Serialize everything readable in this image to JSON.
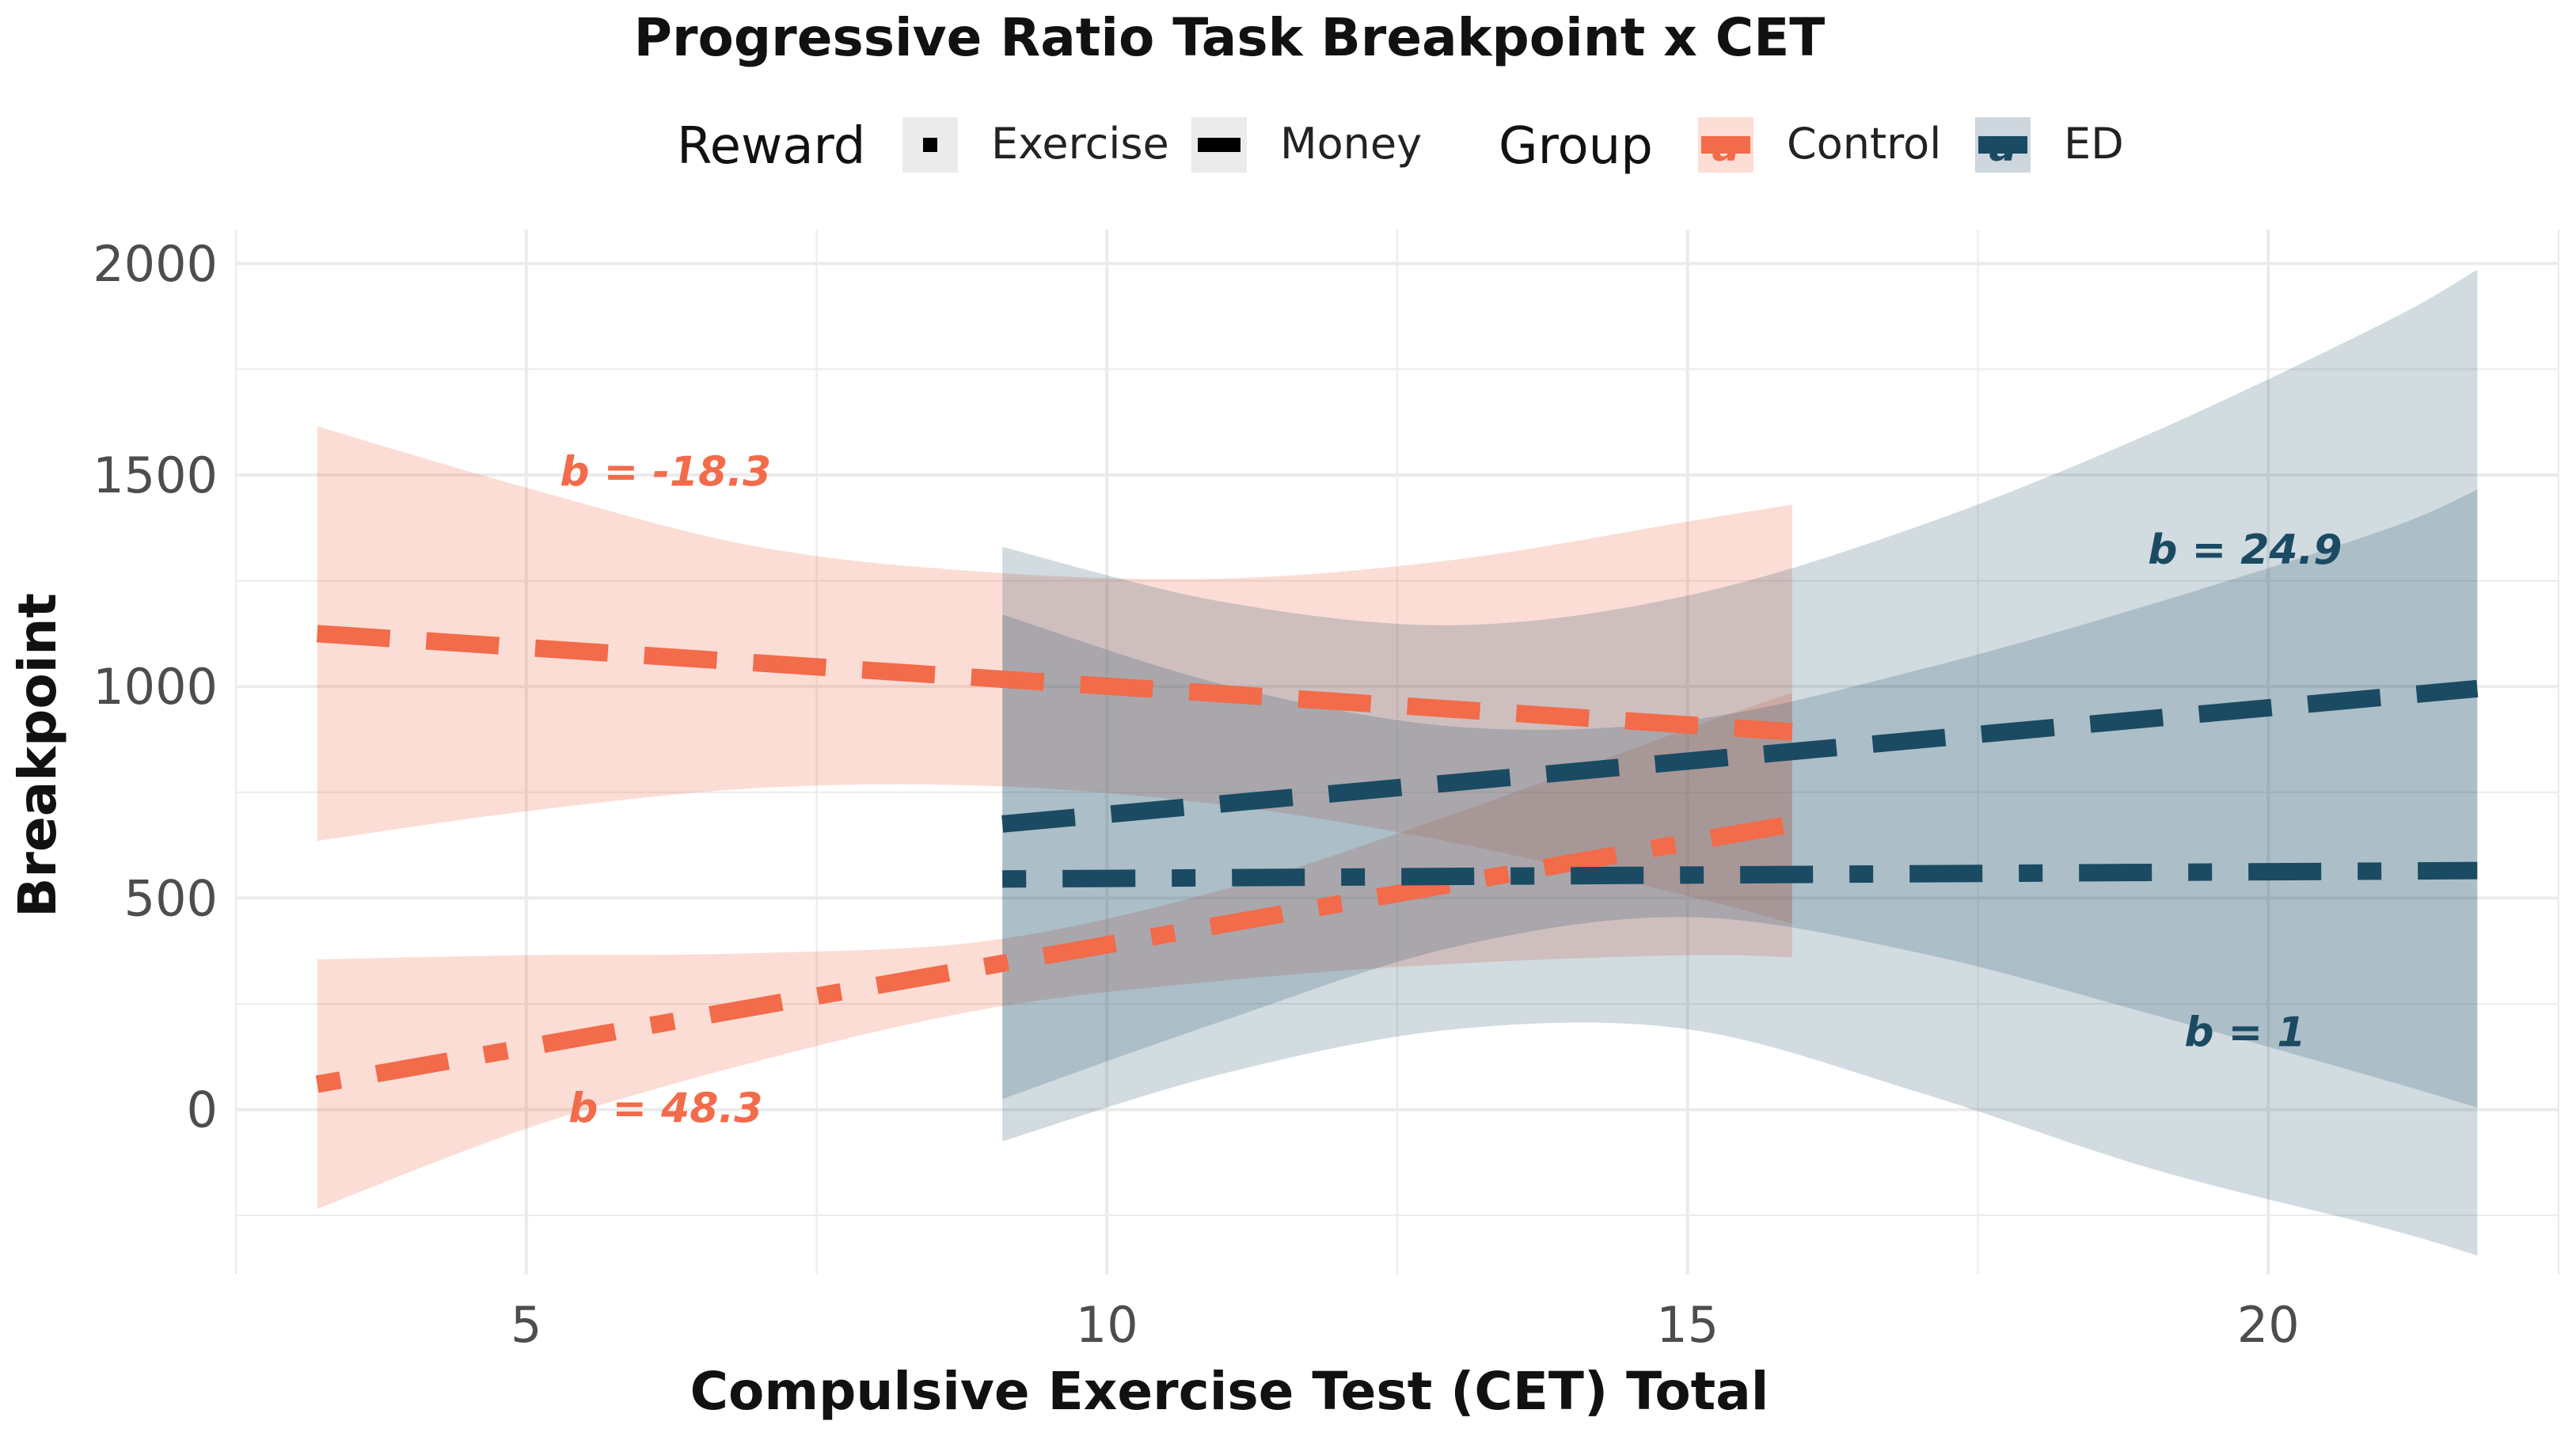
{
  "chart_data": {
    "type": "line",
    "title": "Progressive Ratio Task Breakpoint x CET",
    "xlabel": "Compulsive Exercise Test (CET) Total",
    "ylabel": "Breakpoint",
    "xlim": [
      2.5,
      22.5
    ],
    "ylim": [
      -390,
      2080
    ],
    "x_ticks": [
      5,
      10,
      15,
      20
    ],
    "y_ticks": [
      0,
      500,
      1000,
      1500,
      2000
    ],
    "grid": true,
    "legend": {
      "position": "top",
      "reward_title": "Reward",
      "reward_items": [
        {
          "label": "Exercise",
          "dash": "dotdash"
        },
        {
          "label": "Money",
          "dash": "longdash"
        }
      ],
      "group_title": "Group",
      "group_items": [
        {
          "label": "Control",
          "color": "#f26b4a",
          "glyph": "a"
        },
        {
          "label": "ED",
          "color": "#1b4a63",
          "glyph": "a"
        }
      ]
    },
    "series": [
      {
        "group": "Control",
        "reward": "Money",
        "color": "#f26b4a",
        "dash": "longdash",
        "x": [
          3.2,
          15.9
        ],
        "y": [
          1125,
          893
        ],
        "band": {
          "x": [
            3.2,
            5,
            7,
            9,
            11,
            13,
            15,
            15.9
          ],
          "lower": [
            635,
            705,
            760,
            765,
            720,
            630,
            505,
            440
          ],
          "upper": [
            1615,
            1470,
            1330,
            1270,
            1255,
            1300,
            1390,
            1430
          ]
        },
        "annotation": "b =  -18.3",
        "annotation_pos": [
          6.2,
          1475
        ]
      },
      {
        "group": "Control",
        "reward": "Exercise",
        "color": "#f26b4a",
        "dash": "dotdash",
        "x": [
          3.2,
          15.9
        ],
        "y": [
          60,
          675
        ],
        "band": {
          "x": [
            3.2,
            5,
            7,
            9,
            11,
            13,
            15,
            15.9
          ],
          "lower": [
            -235,
            -45,
            115,
            240,
            305,
            345,
            365,
            360
          ],
          "upper": [
            355,
            365,
            370,
            400,
            520,
            700,
            900,
            985
          ]
        },
        "annotation": "b =  48.3",
        "annotation_pos": [
          6.2,
          -30
        ]
      },
      {
        "group": "ED",
        "reward": "Money",
        "color": "#1b4a63",
        "dash": "longdash",
        "x": [
          9.1,
          21.8
        ],
        "y": [
          675,
          995
        ],
        "band": {
          "x": [
            9.1,
            11,
            13,
            15,
            17,
            19,
            21,
            21.8
          ],
          "lower": [
            25,
            210,
            385,
            455,
            370,
            225,
            70,
            5
          ],
          "upper": [
            1170,
            1005,
            905,
            920,
            1040,
            1195,
            1370,
            1465
          ]
        },
        "annotation": "b =  24.9",
        "annotation_pos": [
          19.8,
          1290
        ]
      },
      {
        "group": "ED",
        "reward": "Exercise",
        "color": "#1b4a63",
        "dash": "dotdash",
        "x": [
          9.1,
          21.8
        ],
        "y": [
          545,
          565
        ],
        "band": {
          "x": [
            9.1,
            11,
            13,
            15,
            17,
            19,
            21,
            21.8
          ],
          "lower": [
            -75,
            85,
            190,
            190,
            40,
            -140,
            -280,
            -345
          ],
          "upper": [
            1330,
            1200,
            1145,
            1215,
            1380,
            1600,
            1860,
            1985
          ]
        },
        "annotation": "b =  1",
        "annotation_pos": [
          19.8,
          150
        ]
      }
    ]
  }
}
